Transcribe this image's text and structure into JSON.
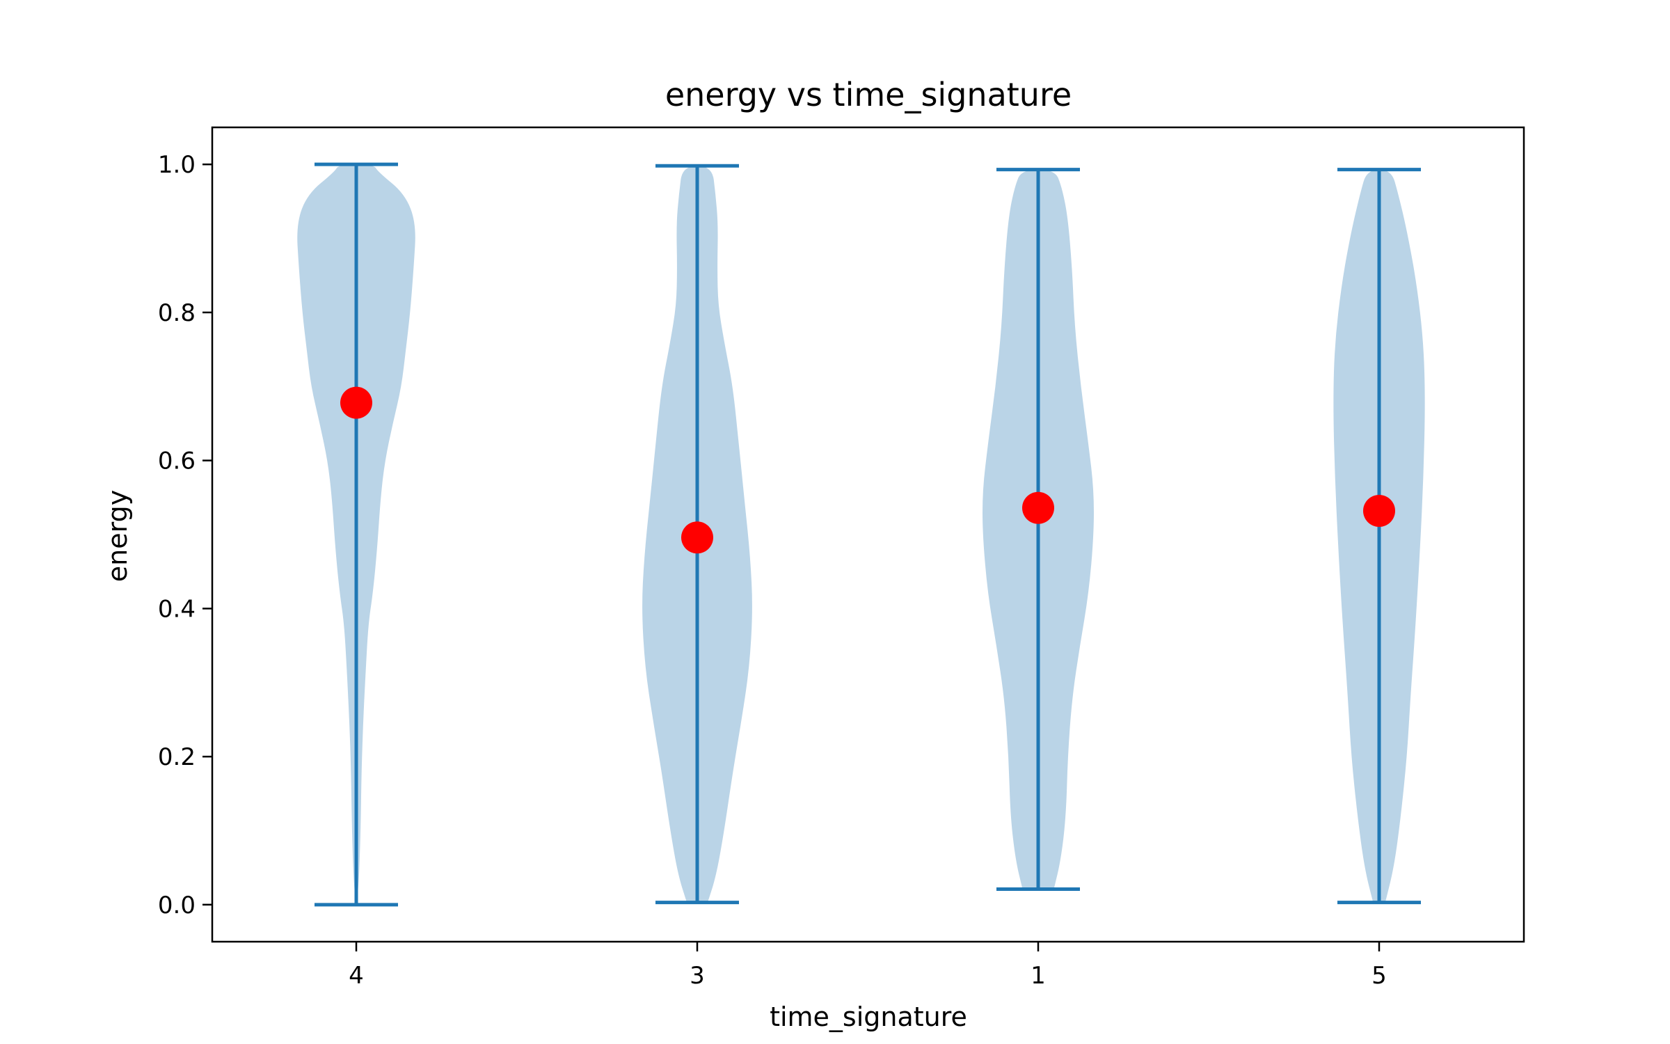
{
  "chart_data": {
    "type": "violin",
    "title": "energy vs time_signature",
    "xlabel": "time_signature",
    "ylabel": "energy",
    "ylim": [
      -0.05,
      1.05
    ],
    "yticks": [
      "0.0",
      "0.2",
      "0.4",
      "0.6",
      "0.8",
      "1.0"
    ],
    "categories": [
      "4",
      "3",
      "1",
      "5"
    ],
    "colors": {
      "violin_fill": "#aecde3",
      "violin_line": "#1f77b4",
      "mean_marker": "#ff0000"
    },
    "grid": false,
    "violins": [
      {
        "category": "4",
        "min": 0.0,
        "max": 1.0,
        "mean": 0.678,
        "profile": [
          [
            0.0,
            0.0
          ],
          [
            0.03,
            0.03
          ],
          [
            0.1,
            0.05
          ],
          [
            0.18,
            0.06
          ],
          [
            0.25,
            0.08
          ],
          [
            0.32,
            0.11
          ],
          [
            0.38,
            0.14
          ],
          [
            0.42,
            0.19
          ],
          [
            0.48,
            0.24
          ],
          [
            0.55,
            0.28
          ],
          [
            0.6,
            0.33
          ],
          [
            0.65,
            0.42
          ],
          [
            0.7,
            0.52
          ],
          [
            0.75,
            0.57
          ],
          [
            0.8,
            0.62
          ],
          [
            0.86,
            0.66
          ],
          [
            0.92,
            0.69
          ],
          [
            0.96,
            0.56
          ],
          [
            0.99,
            0.25
          ],
          [
            1.0,
            0.2
          ]
        ]
      },
      {
        "category": "3",
        "min": 0.003,
        "max": 0.998,
        "mean": 0.496,
        "profile": [
          [
            0.003,
            0.12
          ],
          [
            0.04,
            0.22
          ],
          [
            0.1,
            0.31
          ],
          [
            0.18,
            0.41
          ],
          [
            0.25,
            0.51
          ],
          [
            0.32,
            0.6
          ],
          [
            0.4,
            0.64
          ],
          [
            0.47,
            0.61
          ],
          [
            0.55,
            0.54
          ],
          [
            0.62,
            0.48
          ],
          [
            0.7,
            0.41
          ],
          [
            0.76,
            0.31
          ],
          [
            0.81,
            0.24
          ],
          [
            0.86,
            0.23
          ],
          [
            0.92,
            0.24
          ],
          [
            0.96,
            0.21
          ],
          [
            0.998,
            0.17
          ]
        ]
      },
      {
        "category": "1",
        "min": 0.021,
        "max": 0.993,
        "mean": 0.536,
        "profile": [
          [
            0.021,
            0.18
          ],
          [
            0.06,
            0.26
          ],
          [
            0.12,
            0.32
          ],
          [
            0.2,
            0.34
          ],
          [
            0.28,
            0.39
          ],
          [
            0.35,
            0.48
          ],
          [
            0.42,
            0.58
          ],
          [
            0.5,
            0.64
          ],
          [
            0.56,
            0.64
          ],
          [
            0.62,
            0.58
          ],
          [
            0.7,
            0.49
          ],
          [
            0.78,
            0.42
          ],
          [
            0.86,
            0.39
          ],
          [
            0.93,
            0.34
          ],
          [
            0.97,
            0.27
          ],
          [
            0.993,
            0.19
          ]
        ]
      },
      {
        "category": "5",
        "min": 0.003,
        "max": 0.993,
        "mean": 0.532,
        "profile": [
          [
            0.003,
            0.07
          ],
          [
            0.05,
            0.17
          ],
          [
            0.12,
            0.25
          ],
          [
            0.2,
            0.32
          ],
          [
            0.28,
            0.36
          ],
          [
            0.38,
            0.42
          ],
          [
            0.48,
            0.47
          ],
          [
            0.58,
            0.51
          ],
          [
            0.68,
            0.53
          ],
          [
            0.76,
            0.51
          ],
          [
            0.84,
            0.43
          ],
          [
            0.91,
            0.32
          ],
          [
            0.96,
            0.22
          ],
          [
            0.993,
            0.14
          ]
        ]
      }
    ]
  }
}
